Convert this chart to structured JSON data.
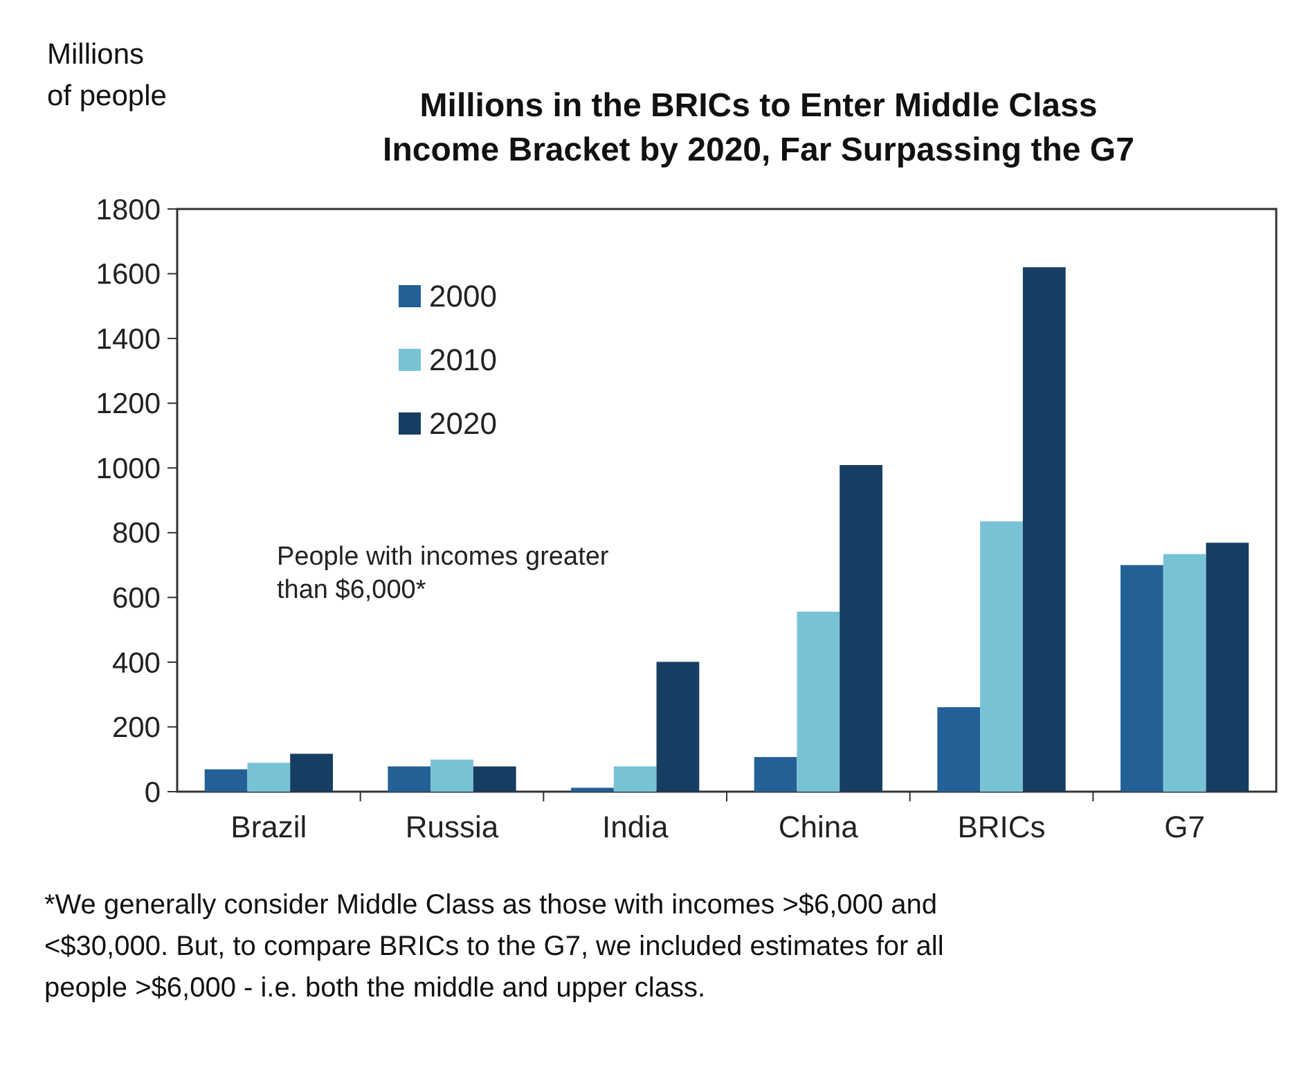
{
  "chart_data": {
    "type": "bar",
    "title": "Millions in the BRICs to Enter Middle Class Income Bracket by 2020, Far Surpassing the G7",
    "ylabel": "Millions of people",
    "categories": [
      "Brazil",
      "Russia",
      "India",
      "China",
      "BRICs",
      "G7"
    ],
    "series": [
      {
        "name": "2000",
        "color": "#236096",
        "values": [
          69,
          78,
          12,
          107,
          261,
          700
        ]
      },
      {
        "name": "2010",
        "color": "#78c2d6",
        "values": [
          89,
          99,
          78,
          556,
          835,
          734
        ]
      },
      {
        "name": "2020",
        "color": "#163d62",
        "values": [
          117,
          78,
          401,
          1009,
          1620,
          769
        ]
      }
    ],
    "ylim": [
      0,
      1800
    ],
    "yticks": [
      0,
      200,
      400,
      600,
      800,
      1000,
      1200,
      1400,
      1600,
      1800
    ],
    "grid": false,
    "legend": "top left",
    "annotations": [
      "People with incomes greater than $6,000*",
      "*We generally consider Middle Class as those with incomes >$6,000 and <$30,000. But, to compare BRICs to the G7, we included estimates for all people >$6,000 - i.e. both the middle and upper class."
    ]
  }
}
